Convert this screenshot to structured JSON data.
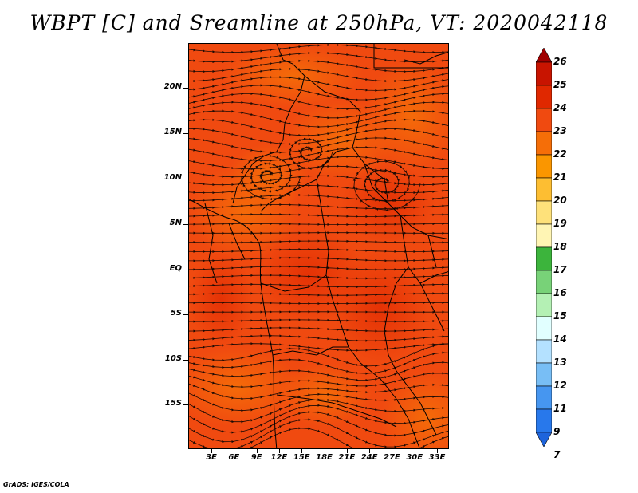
{
  "title": "WBPT [C] and Sreamline at 250hPa, VT: 2020042118",
  "credit": "GrADS: IGES/COLA",
  "map": {
    "lat_labels": [
      "20N",
      "15N",
      "10N",
      "5N",
      "EQ",
      "5S",
      "10S",
      "15S"
    ],
    "lon_labels": [
      "3E",
      "6E",
      "9E",
      "12E",
      "15E",
      "18E",
      "21E",
      "24E",
      "27E",
      "30E",
      "33E"
    ],
    "base_color": "#f04a10",
    "streamline_color": "#1a0a05",
    "boundary_color": "#000000"
  },
  "colorbar": {
    "labels": [
      "26",
      "25",
      "24",
      "23",
      "22",
      "21",
      "20",
      "19",
      "18",
      "17",
      "16",
      "15",
      "14",
      "13",
      "12",
      "11",
      "9",
      "7"
    ],
    "colors": [
      "#a00000",
      "#c81400",
      "#e02800",
      "#f04a10",
      "#f56e08",
      "#fa9600",
      "#fdbe32",
      "#fee17a",
      "#fff5b4",
      "#3cb43c",
      "#78d278",
      "#b4f0b4",
      "#e1ffff",
      "#b4e1ff",
      "#78bef5",
      "#4696f0",
      "#2878eb",
      "#1e64dc"
    ],
    "extend": "both"
  }
}
